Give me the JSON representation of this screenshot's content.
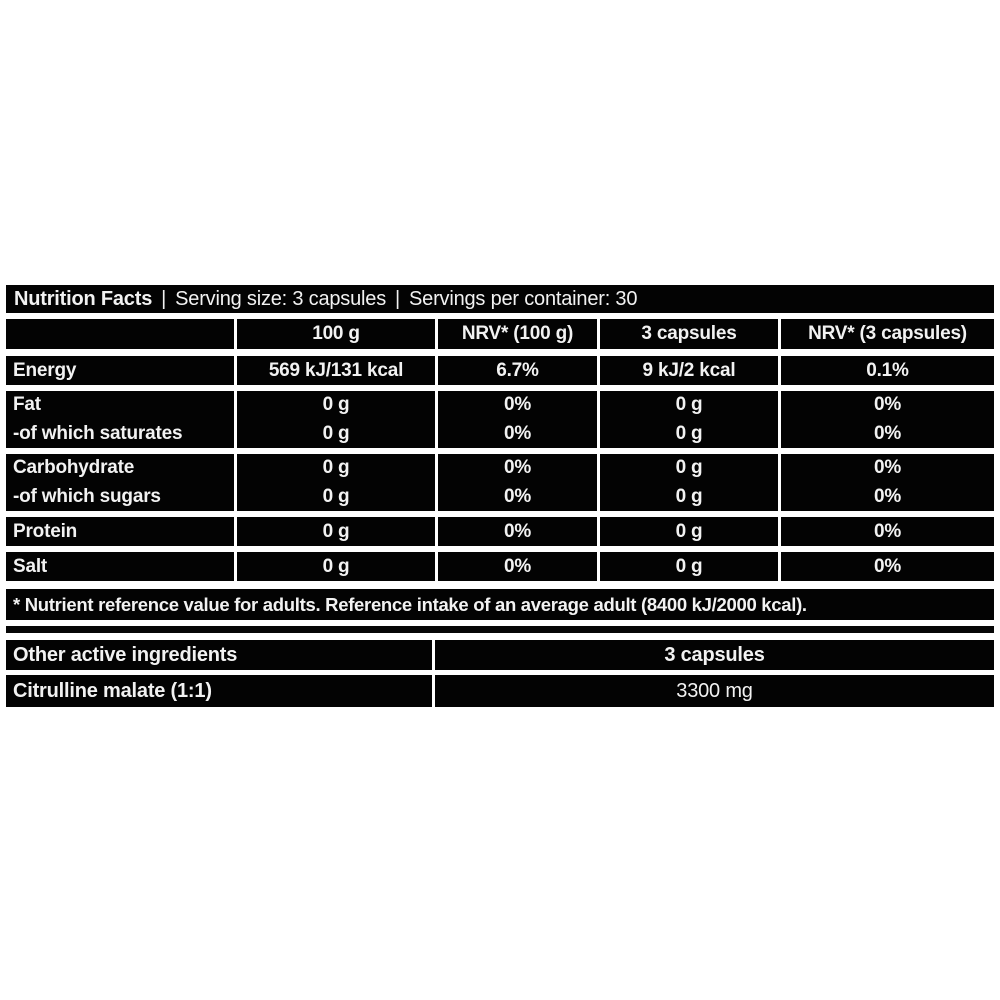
{
  "colors": {
    "page_bg": "#ffffff",
    "label_bg": "#000000",
    "text": "#f2f2f2"
  },
  "header": {
    "title": "Nutrition Facts",
    "separator": "|",
    "serving_size": "Serving size: 3 capsules",
    "servings_per_container": "Servings per container: 30"
  },
  "table1": {
    "col_headers": [
      "",
      "100 g",
      "NRV* (100 g)",
      "3 capsules",
      "NRV* (3 capsules)"
    ],
    "rows": [
      {
        "label": "Energy",
        "values": [
          "569 kJ/131 kcal",
          "6.7%",
          "9 kJ/2 kcal",
          "0.1%"
        ]
      },
      {
        "label": "Fat",
        "values": [
          "0 g",
          "0%",
          "0 g",
          "0%"
        ]
      },
      {
        "label": "-of which saturates",
        "values": [
          "0 g",
          "0%",
          "0 g",
          "0%"
        ]
      },
      {
        "label": "Carbohydrate",
        "values": [
          "0 g",
          "0%",
          "0 g",
          "0%"
        ]
      },
      {
        "label": "-of which sugars",
        "values": [
          "0 g",
          "0%",
          "0 g",
          "0%"
        ]
      },
      {
        "label": "Protein",
        "values": [
          "0 g",
          "0%",
          "0 g",
          "0%"
        ]
      },
      {
        "label": "Salt",
        "values": [
          "0 g",
          "0%",
          "0 g",
          "0%"
        ]
      }
    ],
    "footnote": "* Nutrient reference value for adults. Reference intake of an average adult (8400 kJ/2000 kcal)."
  },
  "table2": {
    "col_headers": [
      "Other active ingredients",
      "3 capsules"
    ],
    "rows": [
      {
        "label": "Citrulline malate (1:1)",
        "amount": "3300 mg"
      }
    ]
  }
}
